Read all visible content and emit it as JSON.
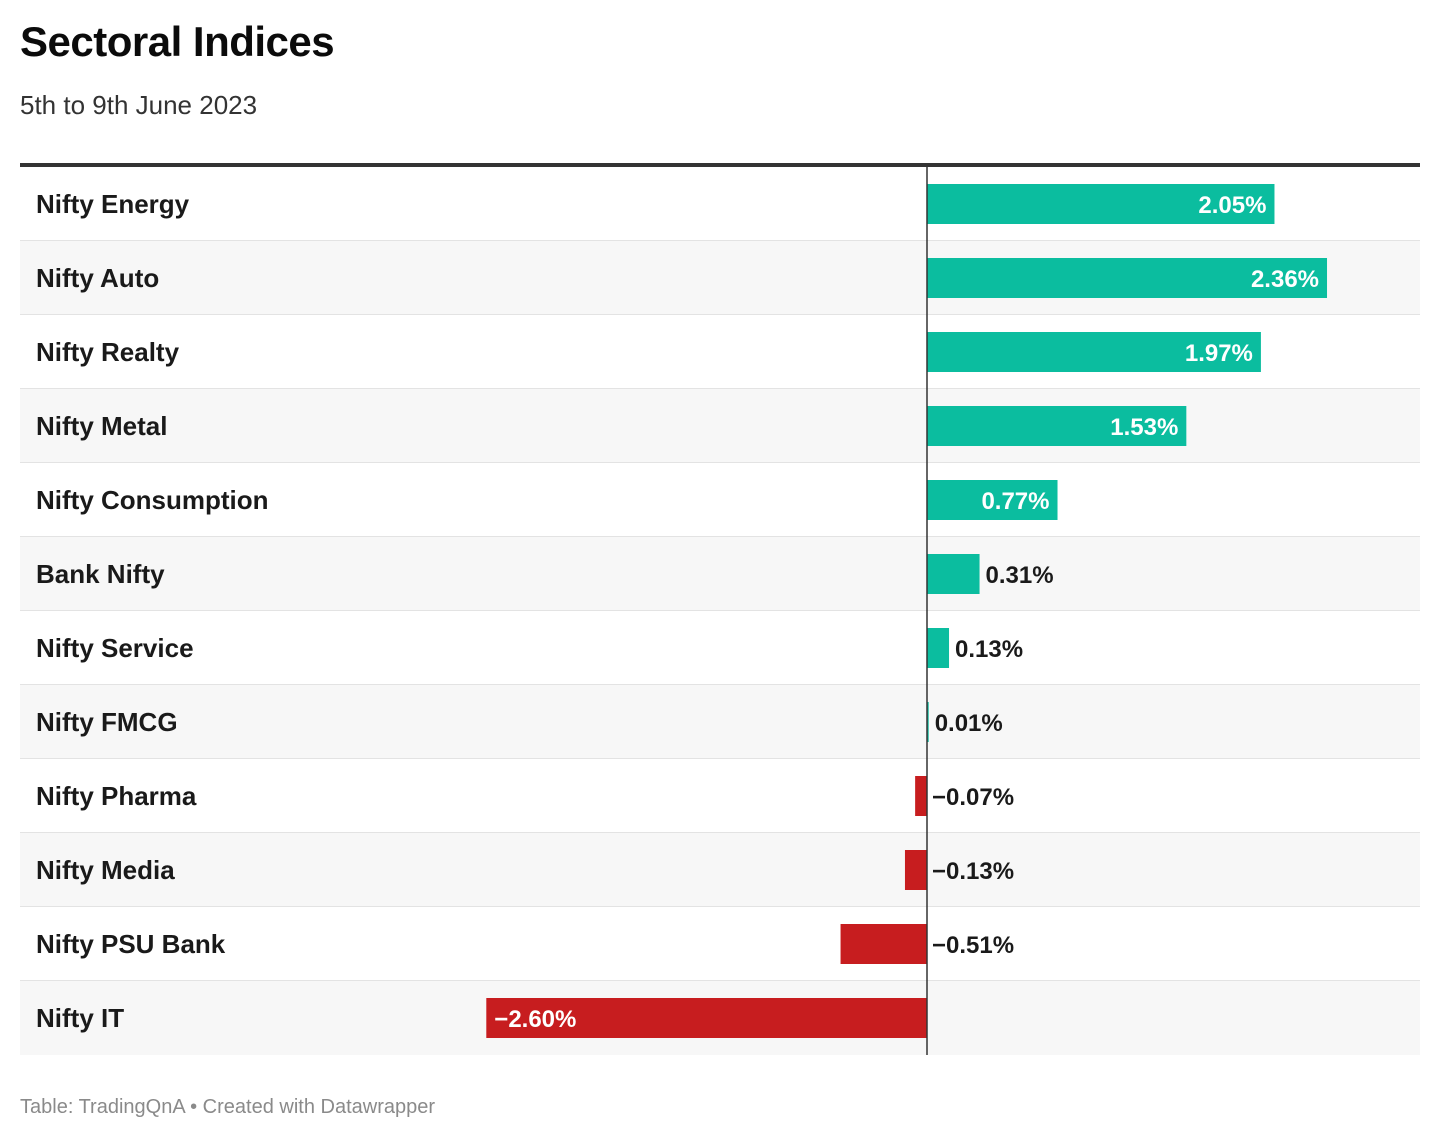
{
  "header": {
    "title": "Sectoral Indices",
    "subtitle": "5th to 9th June 2023"
  },
  "footer": {
    "source_text": "Table: TradingQnA • Created with Datawrapper"
  },
  "colors": {
    "positive": "#0bbd9f",
    "negative": "#c71d1f",
    "axis": "#333333",
    "label_on_bar": "#ffffff",
    "label_outside": "#1a1a1a"
  },
  "chart_data": {
    "type": "bar",
    "orientation": "horizontal",
    "categories": [
      "Nifty Energy",
      "Nifty Auto",
      "Nifty Realty",
      "Nifty Metal",
      "Nifty Consumption",
      "Bank Nifty",
      "Nifty Service",
      "Nifty FMCG",
      "Nifty Pharma",
      "Nifty Media",
      "Nifty PSU Bank",
      "Nifty IT"
    ],
    "values": [
      2.05,
      2.36,
      1.97,
      1.53,
      0.77,
      0.31,
      0.13,
      0.01,
      -0.07,
      -0.13,
      -0.51,
      -2.6
    ],
    "value_labels": [
      "2.05%",
      "2.36%",
      "1.97%",
      "1.53%",
      "0.77%",
      "0.31%",
      "0.13%",
      "0.01%",
      "−0.07%",
      "−0.13%",
      "−0.51%",
      "−2.60%"
    ],
    "unit": "%",
    "xlim": [
      -4.62,
      2.52
    ],
    "title": "Sectoral Indices",
    "subtitle": "5th to 9th June 2023"
  }
}
